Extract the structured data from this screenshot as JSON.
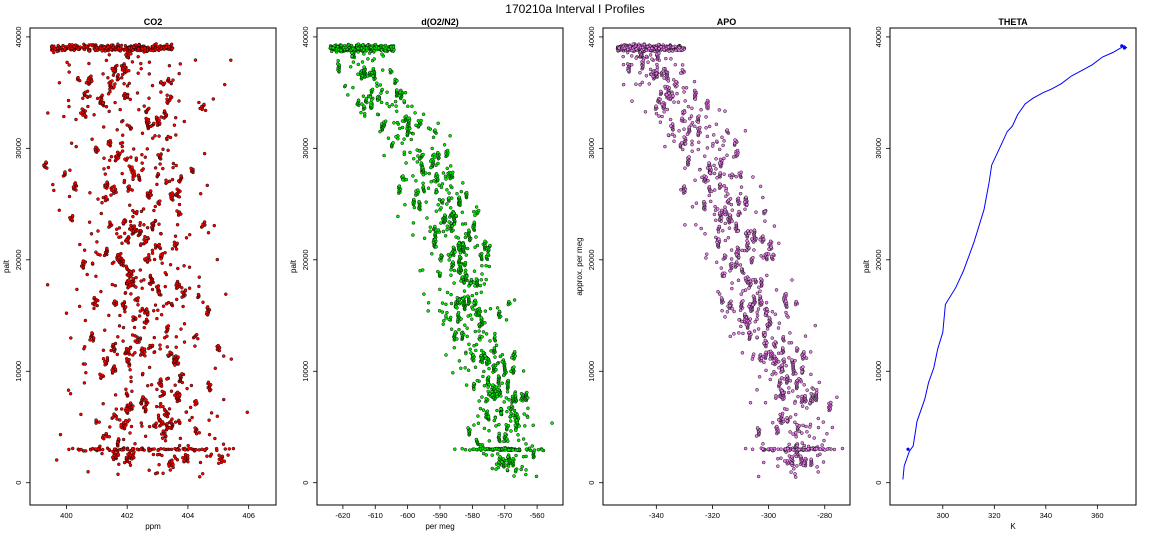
{
  "figure_title": "170210a   Interval I Profiles",
  "colors": {
    "co2": "#ff0000",
    "o2n2": "#00ee00",
    "apo": "#ee82ee",
    "theta": "#0000ff",
    "edge": "#000000"
  },
  "chart_data": [
    {
      "type": "scatter",
      "title": "CO2",
      "xlabel": "ppm",
      "ylabel": "palt",
      "xlim": [
        398.8,
        406.9
      ],
      "ylim": [
        -2000,
        40800
      ],
      "xticks": [
        400,
        402,
        404,
        406
      ],
      "yticks": [
        0,
        10000,
        20000,
        30000,
        40000
      ],
      "profile": {
        "y": [
          500,
          3000,
          5000,
          10000,
          15000,
          20000,
          25000,
          30000,
          35000,
          38000,
          39000
        ],
        "x": [
          402.9,
          402.7,
          402.7,
          402.5,
          402.5,
          402.4,
          402.4,
          402.5,
          402.3,
          402.2,
          401.8
        ]
      },
      "spread": 1.1,
      "layer_y": 3000,
      "top_y": 39000,
      "top_band": [
        399.5,
        403.5
      ]
    },
    {
      "type": "scatter",
      "title": "d(O2/N2)",
      "xlabel": "per meg",
      "ylabel": "palt",
      "xlim": [
        -628,
        -552
      ],
      "ylim": [
        -2000,
        40800
      ],
      "xticks": [
        -620,
        -610,
        -600,
        -590,
        -580,
        -570,
        -560
      ],
      "yticks": [
        0,
        10000,
        20000,
        30000,
        40000
      ],
      "profile": {
        "y": [
          500,
          3000,
          7000,
          10000,
          14000,
          18000,
          22000,
          26000,
          30000,
          33000,
          36000,
          38000,
          39000
        ],
        "x": [
          -570,
          -570,
          -570,
          -574,
          -580,
          -583,
          -586,
          -590,
          -597,
          -605,
          -612,
          -614,
          -615
        ]
      },
      "spread": 5,
      "layer_y": 3000,
      "top_y": 39000,
      "top_band": [
        -624,
        -604
      ]
    },
    {
      "type": "scatter",
      "title": "APO",
      "xlabel": "",
      "ylabel": "approx. per meg",
      "xlim": [
        -359,
        -271
      ],
      "ylim": [
        -2000,
        40800
      ],
      "xticks": [
        -340,
        -320,
        -300,
        -280
      ],
      "yticks": [
        0,
        10000,
        20000,
        30000,
        40000
      ],
      "profile": {
        "y": [
          500,
          3000,
          7000,
          10000,
          14000,
          18000,
          22000,
          26000,
          30000,
          33000,
          36000,
          38000,
          39000
        ],
        "x": [
          -290,
          -290,
          -291,
          -296,
          -303,
          -308,
          -311,
          -315,
          -322,
          -330,
          -338,
          -342,
          -343
        ]
      },
      "spread": 6,
      "layer_y": 3000,
      "top_y": 39000,
      "top_band": [
        -354,
        -330
      ]
    },
    {
      "type": "line",
      "title": "THETA",
      "xlabel": "K",
      "ylabel": "palt",
      "xlim": [
        279.5,
        375
      ],
      "ylim": [
        -2000,
        40800
      ],
      "xticks": [
        300,
        320,
        340,
        360
      ],
      "yticks": [
        0,
        10000,
        20000,
        30000,
        40000
      ],
      "x": [
        284.5,
        285,
        287,
        288.5,
        290,
        293,
        294.5,
        296.5,
        298,
        300,
        301,
        305,
        308,
        312,
        316,
        318,
        319,
        323,
        325,
        327,
        329,
        332,
        335,
        339,
        342,
        346,
        350,
        354,
        358,
        362,
        366,
        369,
        370.5,
        371.5
      ],
      "y": [
        300,
        1500,
        2800,
        3300,
        5500,
        7500,
        9000,
        10300,
        12000,
        13500,
        16000,
        17500,
        19000,
        21500,
        24500,
        27000,
        28500,
        30500,
        31500,
        32000,
        33000,
        34000,
        34500,
        35000,
        35300,
        35800,
        36500,
        37000,
        37500,
        38200,
        38600,
        39000,
        39200,
        39000
      ]
    }
  ]
}
